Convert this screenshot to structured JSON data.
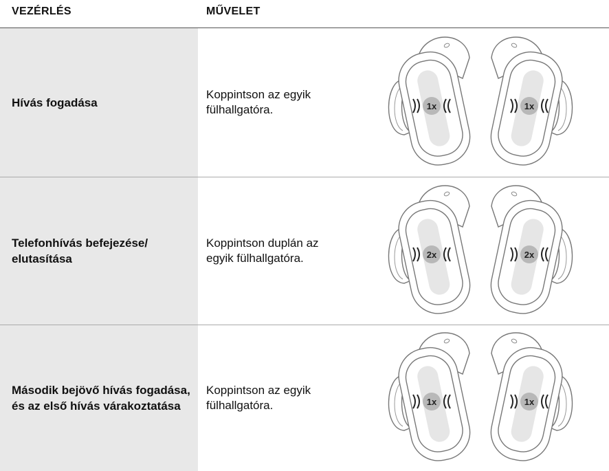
{
  "header": {
    "control": "VEZÉRLÉS",
    "action": "MŰVELET"
  },
  "rows": [
    {
      "control": "Hívás fogadása",
      "action": "Koppintson az egyik fülhallgatóra.",
      "taps": "1x"
    },
    {
      "control": "Telefonhívás befejezése/ elutasítása",
      "action": "Koppintson duplán az egyik fülhallgatóra.",
      "taps": "2x"
    },
    {
      "control": "Második bejövő hívás fogadása, és az első hívás várakoztatása",
      "action": "Koppintson az egyik fülhallgatóra.",
      "taps": "1x"
    }
  ]
}
